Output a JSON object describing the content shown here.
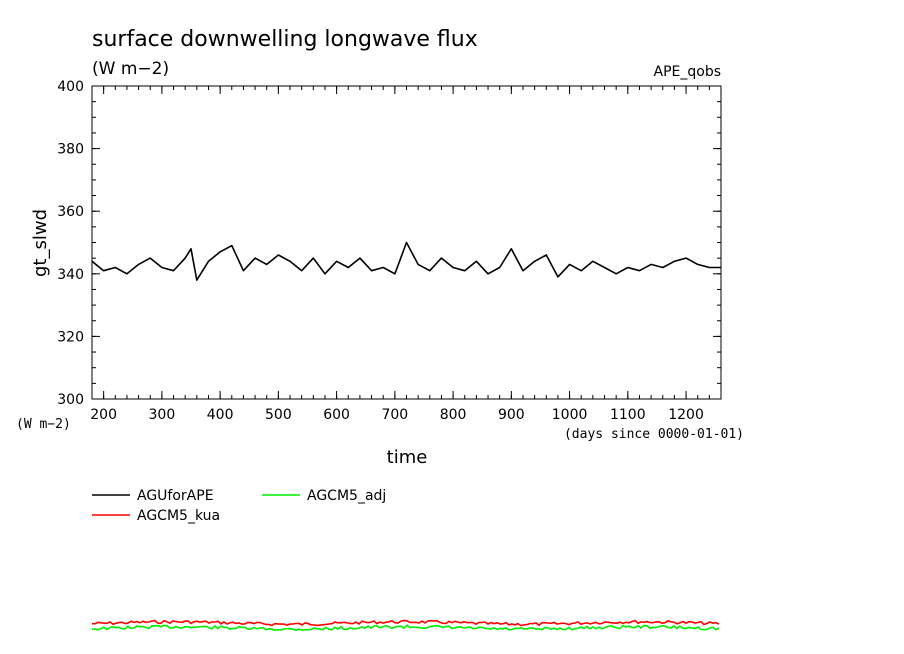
{
  "chart_data": {
    "type": "line",
    "title": "surface downwelling longwave flux",
    "subtitle": "(W m−2)",
    "experiment": "APE_qobs",
    "xlabel": "time",
    "x_unit": "(days since 0000-01-01)",
    "ylabel": "gt_slwd",
    "y_unit": "(W m−2)",
    "xlim": [
      180,
      1260
    ],
    "ylim": [
      300,
      400
    ],
    "x_ticks": [
      200,
      300,
      400,
      500,
      600,
      700,
      800,
      900,
      1000,
      1100,
      1200
    ],
    "y_ticks": [
      300,
      320,
      340,
      360,
      380,
      400
    ],
    "grid": false,
    "legend_position": "below",
    "x": [
      180,
      200,
      220,
      240,
      260,
      280,
      300,
      320,
      340,
      350,
      360,
      380,
      400,
      420,
      440,
      460,
      480,
      500,
      520,
      540,
      560,
      580,
      600,
      620,
      640,
      660,
      680,
      700,
      720,
      740,
      760,
      780,
      800,
      820,
      840,
      860,
      880,
      900,
      920,
      940,
      960,
      980,
      1000,
      1020,
      1040,
      1060,
      1080,
      1100,
      1120,
      1140,
      1160,
      1180,
      1200,
      1220,
      1240,
      1260
    ],
    "series": [
      {
        "name": "AGUforAPE",
        "color": "#000000",
        "values": [
          344,
          341,
          342,
          340,
          343,
          345,
          342,
          341,
          345,
          348,
          338,
          344,
          347,
          349,
          341,
          345,
          343,
          346,
          344,
          341,
          345,
          340,
          344,
          342,
          345,
          341,
          342,
          340,
          350,
          343,
          341,
          345,
          342,
          341,
          344,
          340,
          342,
          348,
          341,
          344,
          346,
          339,
          343,
          341,
          344,
          342,
          340,
          342,
          341,
          343,
          342,
          344,
          345,
          343,
          342,
          342
        ]
      },
      {
        "name": "AGCM5_kua",
        "color": "#ff0000"
      },
      {
        "name": "AGCM5_adj",
        "color": "#00ee00"
      }
    ]
  }
}
